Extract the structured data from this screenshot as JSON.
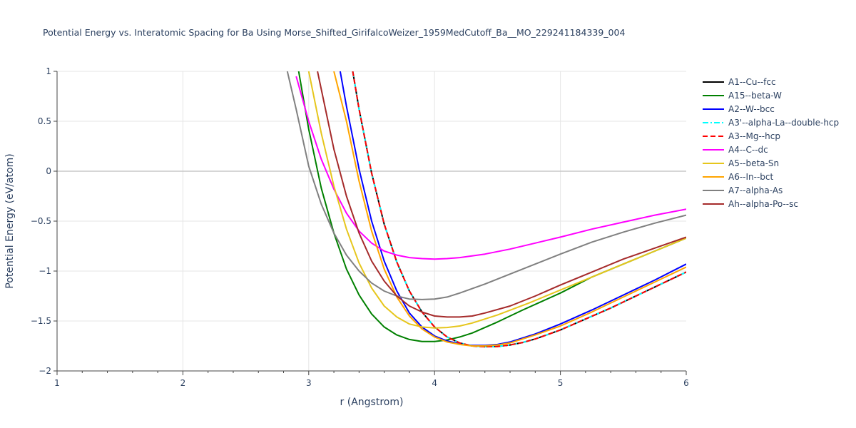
{
  "chart_data": {
    "type": "line",
    "title": "Potential Energy vs. Interatomic Spacing for Ba Using Morse_Shifted_GirifalcoWeizer_1959MedCutoff_Ba__MO_229241184339_004",
    "xlabel": "r (Angstrom)",
    "ylabel": "Potential Energy (eV/atom)",
    "xlim": [
      1,
      6
    ],
    "ylim": [
      -2,
      1
    ],
    "xticks": [
      "1",
      "2",
      "3",
      "4",
      "5",
      "6"
    ],
    "yticks": [
      "−2",
      "−1.5",
      "−1",
      "−0.5",
      "0",
      "0.5",
      "1"
    ],
    "yticks_values": [
      -2,
      -1.5,
      -1,
      -0.5,
      0,
      0.5,
      1
    ],
    "grid": true,
    "legend_position": "top-right",
    "series": [
      {
        "name": "A1--Cu--fcc",
        "color": "#000000",
        "dash": "solid",
        "x": [
          3.35,
          3.4,
          3.5,
          3.6,
          3.7,
          3.8,
          3.9,
          4.0,
          4.1,
          4.2,
          4.3,
          4.4,
          4.5,
          4.6,
          4.7,
          4.8,
          5.0,
          5.2,
          5.4,
          5.6,
          5.8,
          6.0
        ],
        "y": [
          1.0,
          0.62,
          -0.02,
          -0.53,
          -0.91,
          -1.2,
          -1.41,
          -1.56,
          -1.66,
          -1.72,
          -1.75,
          -1.757,
          -1.755,
          -1.74,
          -1.715,
          -1.68,
          -1.59,
          -1.48,
          -1.37,
          -1.25,
          -1.13,
          -1.01
        ]
      },
      {
        "name": "A15--beta-W",
        "color": "#008000",
        "dash": "solid",
        "x": [
          2.92,
          3.0,
          3.1,
          3.2,
          3.3,
          3.4,
          3.5,
          3.6,
          3.7,
          3.8,
          3.9,
          4.0,
          4.1,
          4.2,
          4.3,
          4.5,
          4.7,
          5.0,
          5.25,
          5.5,
          5.75,
          6.0
        ],
        "y": [
          1.0,
          0.42,
          -0.17,
          -0.62,
          -0.98,
          -1.24,
          -1.43,
          -1.56,
          -1.64,
          -1.685,
          -1.705,
          -1.705,
          -1.69,
          -1.66,
          -1.62,
          -1.51,
          -1.39,
          -1.22,
          -1.06,
          -0.93,
          -0.8,
          -0.67
        ]
      },
      {
        "name": "A2--W--bcc",
        "color": "#0000ff",
        "dash": "solid",
        "x": [
          3.25,
          3.3,
          3.4,
          3.5,
          3.6,
          3.7,
          3.8,
          3.9,
          4.0,
          4.1,
          4.2,
          4.3,
          4.4,
          4.5,
          4.6,
          4.8,
          5.0,
          5.25,
          5.5,
          5.75,
          6.0
        ],
        "y": [
          1.0,
          0.65,
          0.02,
          -0.5,
          -0.9,
          -1.2,
          -1.42,
          -1.56,
          -1.65,
          -1.7,
          -1.73,
          -1.745,
          -1.745,
          -1.735,
          -1.71,
          -1.63,
          -1.53,
          -1.39,
          -1.24,
          -1.09,
          -0.93
        ]
      },
      {
        "name": "A3'--alpha-La--double-hcp",
        "color": "#00ffff",
        "dash": "dashdot",
        "x": [
          3.35,
          3.4,
          3.5,
          3.6,
          3.7,
          3.8,
          3.9,
          4.0,
          4.1,
          4.2,
          4.3,
          4.4,
          4.5,
          4.6,
          4.7,
          4.8,
          5.0,
          5.2,
          5.4,
          5.6,
          5.8,
          6.0
        ],
        "y": [
          1.0,
          0.62,
          -0.02,
          -0.53,
          -0.91,
          -1.2,
          -1.41,
          -1.56,
          -1.66,
          -1.72,
          -1.75,
          -1.757,
          -1.755,
          -1.74,
          -1.715,
          -1.68,
          -1.59,
          -1.48,
          -1.37,
          -1.25,
          -1.13,
          -1.01
        ]
      },
      {
        "name": "A3--Mg--hcp",
        "color": "#ff0000",
        "dash": "dash",
        "x": [
          3.35,
          3.4,
          3.5,
          3.6,
          3.7,
          3.8,
          3.9,
          4.0,
          4.1,
          4.2,
          4.3,
          4.4,
          4.5,
          4.6,
          4.7,
          4.8,
          5.0,
          5.2,
          5.4,
          5.6,
          5.8,
          6.0
        ],
        "y": [
          1.0,
          0.62,
          -0.02,
          -0.53,
          -0.91,
          -1.2,
          -1.41,
          -1.56,
          -1.66,
          -1.72,
          -1.75,
          -1.757,
          -1.755,
          -1.74,
          -1.715,
          -1.68,
          -1.59,
          -1.48,
          -1.37,
          -1.25,
          -1.13,
          -1.01
        ]
      },
      {
        "name": "A4--C--dc",
        "color": "#ff00ff",
        "dash": "solid",
        "x": [
          2.9,
          3.0,
          3.1,
          3.2,
          3.3,
          3.4,
          3.5,
          3.6,
          3.7,
          3.8,
          3.9,
          4.0,
          4.1,
          4.2,
          4.4,
          4.6,
          4.8,
          5.0,
          5.25,
          5.5,
          5.75,
          6.0
        ],
        "y": [
          0.95,
          0.5,
          0.12,
          -0.18,
          -0.42,
          -0.6,
          -0.72,
          -0.8,
          -0.84,
          -0.865,
          -0.875,
          -0.88,
          -0.875,
          -0.865,
          -0.83,
          -0.78,
          -0.72,
          -0.66,
          -0.58,
          -0.51,
          -0.44,
          -0.38
        ]
      },
      {
        "name": "A5--beta-Sn",
        "color": "#e6c61c",
        "dash": "solid",
        "x": [
          3.0,
          3.1,
          3.2,
          3.3,
          3.4,
          3.5,
          3.6,
          3.7,
          3.8,
          3.9,
          4.0,
          4.1,
          4.2,
          4.3,
          4.5,
          4.75,
          5.0,
          5.25,
          5.5,
          5.75,
          6.0
        ],
        "y": [
          1.0,
          0.38,
          -0.15,
          -0.58,
          -0.92,
          -1.17,
          -1.35,
          -1.46,
          -1.53,
          -1.56,
          -1.57,
          -1.565,
          -1.55,
          -1.52,
          -1.44,
          -1.32,
          -1.19,
          -1.06,
          -0.93,
          -0.8,
          -0.67
        ]
      },
      {
        "name": "A6--In--bct",
        "color": "#ffa500",
        "dash": "solid",
        "x": [
          3.2,
          3.3,
          3.4,
          3.5,
          3.6,
          3.7,
          3.8,
          3.9,
          4.0,
          4.1,
          4.2,
          4.3,
          4.4,
          4.5,
          4.6,
          4.8,
          5.0,
          5.25,
          5.5,
          5.75,
          6.0
        ],
        "y": [
          1.0,
          0.5,
          -0.1,
          -0.6,
          -0.98,
          -1.26,
          -1.45,
          -1.58,
          -1.66,
          -1.71,
          -1.735,
          -1.75,
          -1.75,
          -1.74,
          -1.72,
          -1.64,
          -1.55,
          -1.41,
          -1.26,
          -1.11,
          -0.96
        ]
      },
      {
        "name": "A7--alpha-As",
        "color": "#808080",
        "dash": "solid",
        "x": [
          2.83,
          2.9,
          3.0,
          3.1,
          3.2,
          3.3,
          3.4,
          3.5,
          3.6,
          3.7,
          3.8,
          3.9,
          4.0,
          4.1,
          4.2,
          4.4,
          4.6,
          4.8,
          5.0,
          5.25,
          5.5,
          5.75,
          6.0
        ],
        "y": [
          1.0,
          0.62,
          0.05,
          -0.33,
          -0.62,
          -0.84,
          -1.0,
          -1.12,
          -1.2,
          -1.25,
          -1.28,
          -1.285,
          -1.28,
          -1.26,
          -1.22,
          -1.13,
          -1.03,
          -0.93,
          -0.83,
          -0.71,
          -0.61,
          -0.52,
          -0.44
        ]
      },
      {
        "name": "Ah--alpha-Po--sc",
        "color": "#a52a2a",
        "dash": "solid",
        "x": [
          3.07,
          3.1,
          3.2,
          3.3,
          3.4,
          3.5,
          3.6,
          3.7,
          3.8,
          3.9,
          4.0,
          4.1,
          4.2,
          4.3,
          4.4,
          4.6,
          4.8,
          5.0,
          5.25,
          5.5,
          5.75,
          6.0
        ],
        "y": [
          1.0,
          0.82,
          0.22,
          -0.25,
          -0.62,
          -0.9,
          -1.1,
          -1.25,
          -1.35,
          -1.41,
          -1.45,
          -1.46,
          -1.46,
          -1.45,
          -1.42,
          -1.35,
          -1.25,
          -1.14,
          -1.01,
          -0.88,
          -0.77,
          -0.66
        ]
      }
    ]
  }
}
